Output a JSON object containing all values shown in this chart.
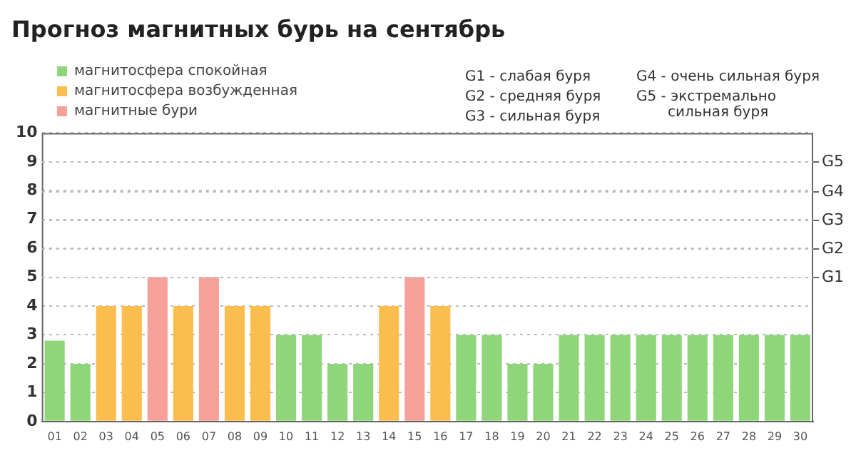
{
  "chart_data": {
    "type": "bar",
    "title": "Прогноз магнитных бурь на сентябрь",
    "categories": [
      "01",
      "02",
      "03",
      "04",
      "05",
      "06",
      "07",
      "08",
      "09",
      "10",
      "11",
      "12",
      "13",
      "14",
      "15",
      "16",
      "17",
      "18",
      "19",
      "20",
      "21",
      "22",
      "23",
      "24",
      "25",
      "26",
      "27",
      "28",
      "29",
      "30"
    ],
    "series": [
      {
        "name": "магнитосфера спокойная",
        "color": "#8fd67a",
        "values": [
          2.8,
          2,
          null,
          null,
          null,
          null,
          null,
          null,
          null,
          3,
          3,
          2,
          2,
          null,
          null,
          null,
          3,
          3,
          2,
          2,
          3,
          3,
          3,
          3,
          3,
          3,
          3,
          3,
          3,
          3
        ]
      },
      {
        "name": "магнитосфера возбужденная",
        "color": "#fbbd4e",
        "values": [
          null,
          null,
          4,
          4,
          null,
          4,
          null,
          4,
          4,
          null,
          null,
          null,
          null,
          4,
          null,
          4,
          null,
          null,
          null,
          null,
          null,
          null,
          null,
          null,
          null,
          null,
          null,
          null,
          null,
          null
        ]
      },
      {
        "name": "магнитные бури",
        "color": "#f7a09a",
        "values": [
          null,
          null,
          null,
          null,
          5,
          null,
          5,
          null,
          null,
          null,
          null,
          null,
          null,
          null,
          5,
          null,
          null,
          null,
          null,
          null,
          null,
          null,
          null,
          null,
          null,
          null,
          null,
          null,
          null,
          null
        ]
      }
    ],
    "ylim": [
      0,
      10
    ],
    "yticks": [
      0,
      1,
      2,
      3,
      4,
      5,
      6,
      7,
      8,
      9,
      10
    ],
    "ref_lines": [
      {
        "axis": "y",
        "value": 5,
        "label": "G1"
      },
      {
        "axis": "y",
        "value": 6,
        "label": "G2"
      },
      {
        "axis": "y",
        "value": 7,
        "label": "G3"
      },
      {
        "axis": "y",
        "value": 8,
        "label": "G4"
      },
      {
        "axis": "y",
        "value": 9,
        "label": "G5"
      }
    ],
    "grid": "y",
    "legend": "top left",
    "annotations": [
      "G1 - слабая буря",
      "G2 - средняя буря",
      "G3 - сильная буря",
      "G4 - очень сильная буря",
      "G5 - экстремально\nсильная буря"
    ]
  }
}
